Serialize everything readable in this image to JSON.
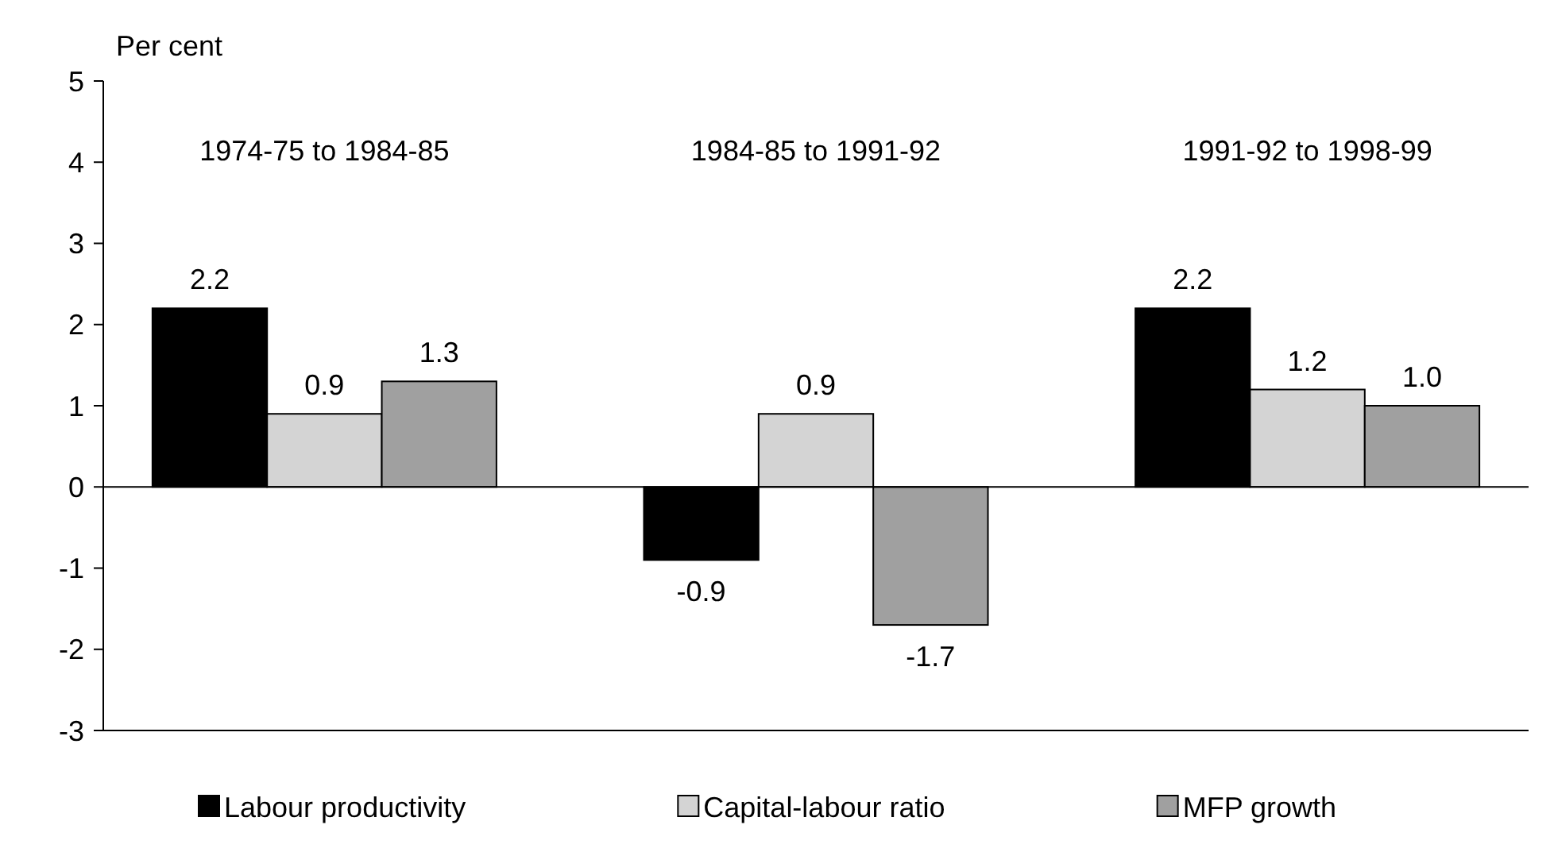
{
  "chart_data": {
    "type": "bar",
    "ylabel": "Per cent",
    "categories": [
      "1974-75 to 1984-85",
      "1984-85 to 1991-92",
      "1991-92 to 1998-99"
    ],
    "series": [
      {
        "name": "Labour productivity",
        "color": "#000000",
        "values": [
          2.2,
          -0.9,
          2.2
        ],
        "value_labels": [
          "2.2",
          "-0.9",
          "2.2"
        ]
      },
      {
        "name": "Capital-labour ratio",
        "color": "#d4d4d4",
        "values": [
          0.9,
          0.9,
          1.2
        ],
        "value_labels": [
          "0.9",
          "0.9",
          "1.2"
        ]
      },
      {
        "name": "MFP growth",
        "color": "#a0a0a0",
        "values": [
          1.3,
          -1.7,
          1.0
        ],
        "value_labels": [
          "1.3",
          "-1.7",
          "1.0"
        ]
      }
    ],
    "ylim": [
      -3,
      5
    ],
    "yticks": [
      -3,
      -2,
      -1,
      0,
      1,
      2,
      3,
      4,
      5
    ],
    "legend": "bottom"
  }
}
